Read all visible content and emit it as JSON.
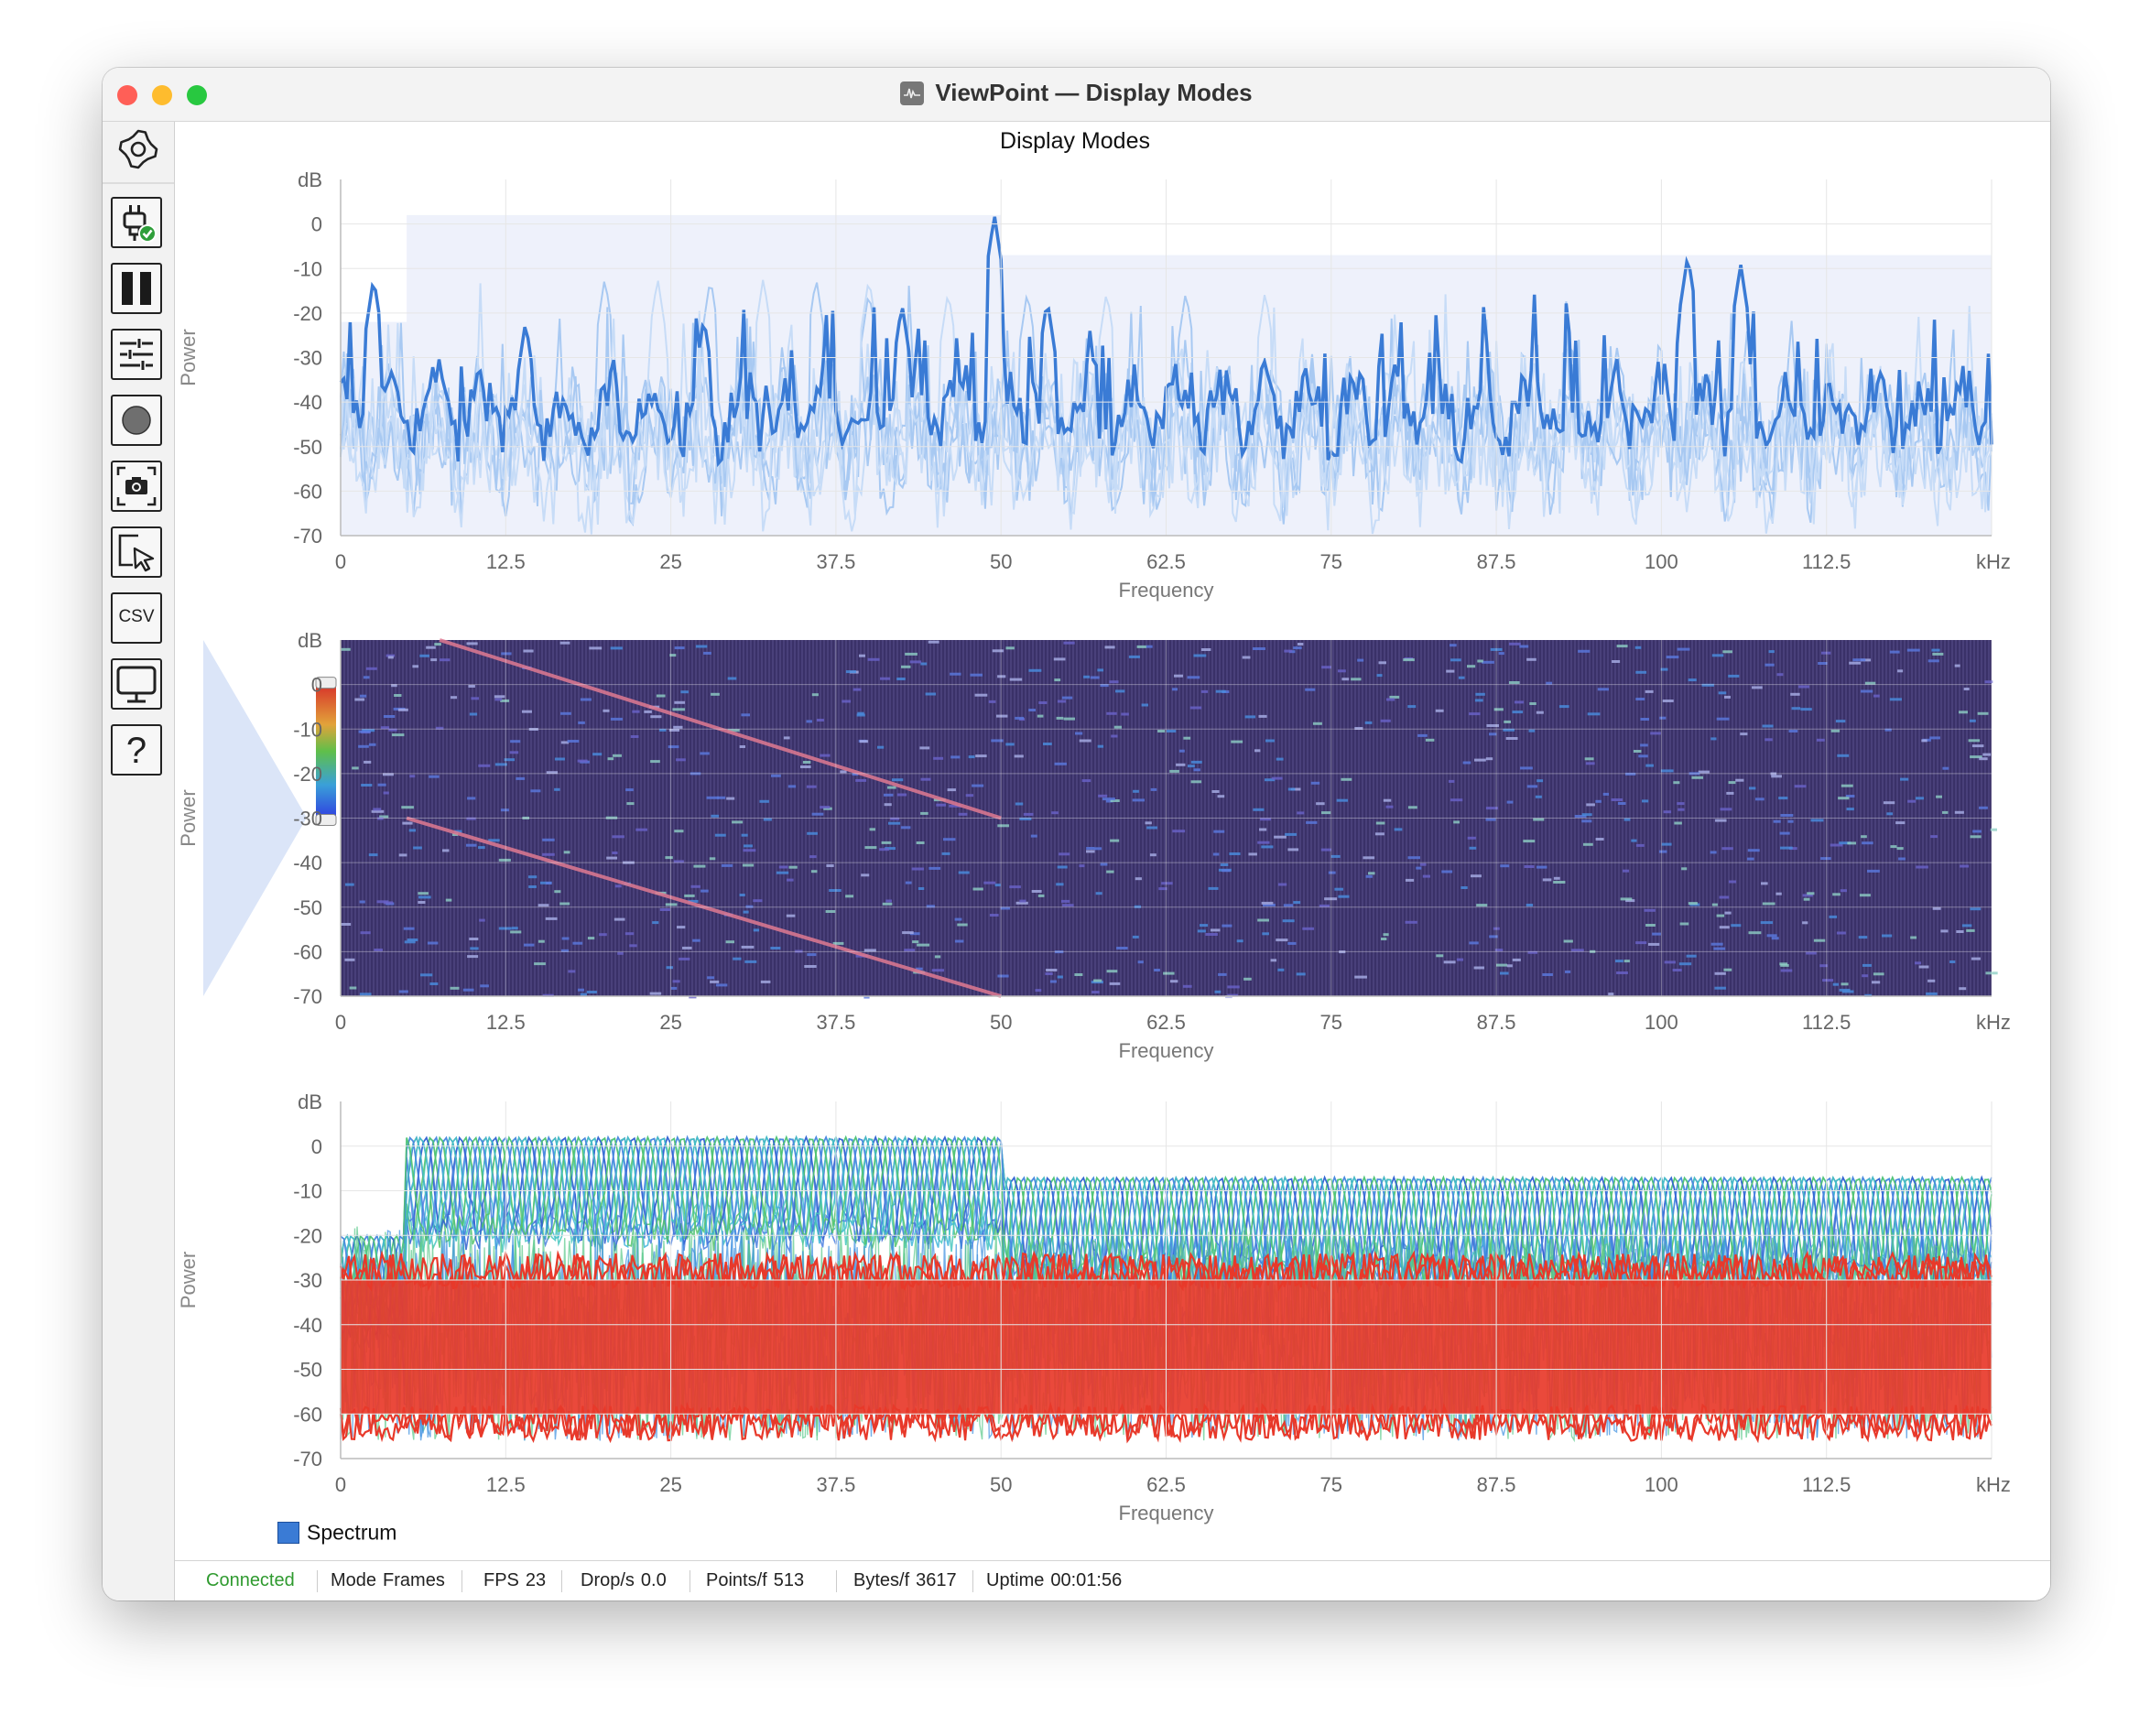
{
  "window": {
    "title": "ViewPoint — Display Modes"
  },
  "plot_title": "Display Modes",
  "toolbar": {
    "settings": "gear-icon",
    "connect": "plug-check-icon",
    "pause": "pause-icon",
    "controls": "sliders-icon",
    "record": "record-icon",
    "screenshot": "camera-icon",
    "select": "pointer-select-icon",
    "csv_label": "CSV",
    "display": "monitor-icon",
    "help": "question-icon"
  },
  "status": {
    "connected": "Connected",
    "mode_label": "Mode",
    "mode_value": "Frames",
    "fps_label": "FPS",
    "fps_value": "23",
    "drop_label": "Drop/s",
    "drop_value": "0.0",
    "points_label": "Points/f",
    "points_value": "513",
    "bytes_label": "Bytes/f",
    "bytes_value": "3617",
    "uptime_label": "Uptime",
    "uptime_value": "00:01:56"
  },
  "legend": {
    "label": "Spectrum",
    "color": "#3a7bd5"
  },
  "colors": {
    "trace": "#3a7bd5",
    "waterfall_bg": "#3a3168",
    "persist_hot": "#e8392a"
  },
  "chart_data": [
    {
      "type": "line",
      "xlabel": "Frequency",
      "ylabel": "Power",
      "x_unit": "kHz",
      "y_unit": "dB",
      "xlim": [
        0,
        125
      ],
      "ylim": [
        -70,
        10
      ],
      "x_ticks": [
        "0",
        "12.5",
        "25",
        "37.5",
        "50",
        "62.5",
        "75",
        "87.5",
        "100",
        "112.5"
      ],
      "y_ticks": [
        "0",
        "-10",
        "-20",
        "-30",
        "-40",
        "-50",
        "-60",
        "-70"
      ],
      "grid": true,
      "series": [
        {
          "name": "Spectrum",
          "noise_floor_db": -42,
          "peaks": [
            [
              2.5,
              -12
            ],
            [
              49.5,
              2
            ],
            [
              102,
              -7
            ],
            [
              106,
              -9
            ],
            [
              53.5,
              -17
            ],
            [
              14,
              -22
            ],
            [
              27.5,
              -21
            ],
            [
              42.5,
              -18
            ]
          ]
        }
      ]
    },
    {
      "type": "heatmap",
      "xlabel": "Frequency",
      "ylabel": "Power",
      "x_unit": "kHz",
      "y_unit": "dB",
      "xlim": [
        0,
        125
      ],
      "ylim": [
        -70,
        10
      ],
      "x_ticks": [
        "0",
        "12.5",
        "25",
        "37.5",
        "50",
        "62.5",
        "75",
        "87.5",
        "100",
        "112.5"
      ],
      "y_ticks": [
        "0",
        "-10",
        "-20",
        "-30",
        "-40",
        "-50",
        "-60",
        "-70"
      ],
      "grid": true,
      "colorbar_range": [
        -30,
        0
      ],
      "sweep_lines": [
        {
          "x": [
            7.5,
            50
          ],
          "y": [
            10,
            -30
          ]
        },
        {
          "x": [
            5,
            50
          ],
          "y": [
            -30,
            -70
          ]
        }
      ]
    },
    {
      "type": "area",
      "xlabel": "Frequency",
      "ylabel": "Power",
      "x_unit": "kHz",
      "y_unit": "dB",
      "xlim": [
        0,
        125
      ],
      "ylim": [
        -70,
        10
      ],
      "x_ticks": [
        "0",
        "12.5",
        "25",
        "37.5",
        "50",
        "62.5",
        "75",
        "87.5",
        "100",
        "112.5"
      ],
      "y_ticks": [
        "0",
        "-10",
        "-20",
        "-30",
        "-40",
        "-50",
        "-60",
        "-70"
      ],
      "grid": true,
      "hot_band_db": [
        -60,
        -30
      ],
      "envelope": [
        {
          "x": [
            5,
            50
          ],
          "y_top": 2
        },
        {
          "x": [
            50,
            125
          ],
          "y_top": -7
        }
      ]
    }
  ]
}
